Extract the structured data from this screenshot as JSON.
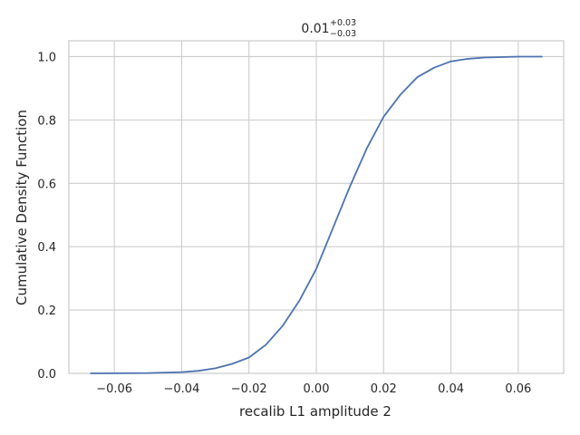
{
  "chart_data": {
    "type": "line",
    "title": {
      "value": "0.01",
      "sup": "+0.03",
      "sub": "−0.03"
    },
    "xlabel": "recalib L1 amplitude 2",
    "ylabel": "Cumulative Density Function",
    "xlim": [
      -0.0735,
      0.0735
    ],
    "ylim": [
      0,
      1.05
    ],
    "xticks": [
      -0.06,
      -0.04,
      -0.02,
      0.0,
      0.02,
      0.04,
      0.06
    ],
    "xtick_labels": [
      "−0.06",
      "−0.04",
      "−0.02",
      "0.00",
      "0.02",
      "0.04",
      "0.06"
    ],
    "yticks": [
      0.0,
      0.2,
      0.4,
      0.6,
      0.8,
      1.0
    ],
    "ytick_labels": [
      "0.0",
      "0.2",
      "0.4",
      "0.6",
      "0.8",
      "1.0"
    ],
    "grid": true,
    "series": [
      {
        "color": "#4c72b0",
        "x": [
          -0.067,
          -0.05,
          -0.04,
          -0.035,
          -0.03,
          -0.025,
          -0.02,
          -0.015,
          -0.01,
          -0.005,
          0.0,
          0.005,
          0.01,
          0.015,
          0.02,
          0.025,
          0.03,
          0.035,
          0.04,
          0.045,
          0.05,
          0.06,
          0.067
        ],
        "y": [
          0.0,
          0.001,
          0.004,
          0.008,
          0.016,
          0.03,
          0.05,
          0.09,
          0.15,
          0.23,
          0.33,
          0.46,
          0.59,
          0.71,
          0.81,
          0.88,
          0.935,
          0.965,
          0.985,
          0.993,
          0.997,
          1.0,
          1.0
        ]
      }
    ]
  }
}
